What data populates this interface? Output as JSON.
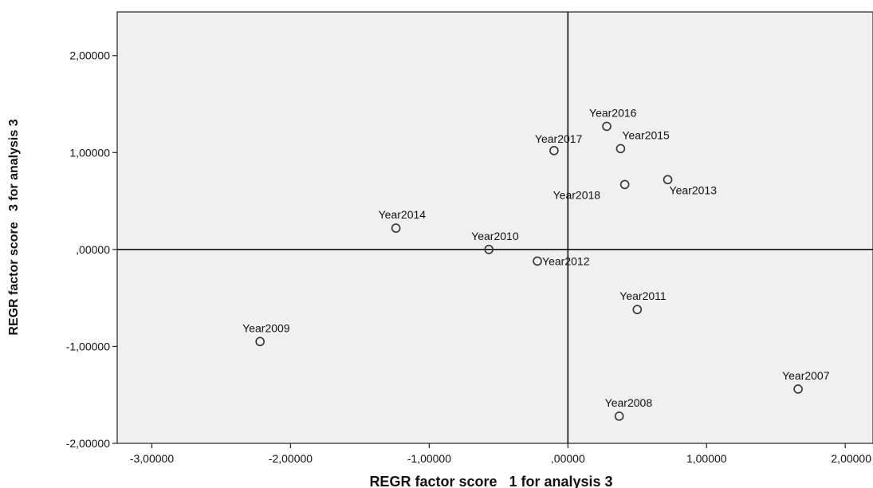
{
  "chart_data": {
    "type": "scatter",
    "xlabel": "REGR factor score   1 for analysis 3",
    "ylabel": "REGR factor score   3 for analysis 3",
    "xlim": [
      -3.25,
      2.2
    ],
    "ylim": [
      -2.0,
      2.45
    ],
    "x_ticks": [
      -3,
      -2,
      -1,
      0,
      1,
      2
    ],
    "y_ticks": [
      -2,
      -1,
      0,
      1,
      2
    ],
    "x_tick_labels": [
      "-3,00000",
      "-2,00000",
      "-1,00000",
      ",00000",
      "1,00000",
      "2,00000"
    ],
    "y_tick_labels": [
      "-2,00000",
      "-1,00000",
      ",00000",
      "1,00000",
      "2,00000"
    ],
    "reference_lines": {
      "x": 0,
      "y": 0
    },
    "grid": false,
    "colors": {
      "plot_background": "#f0f0f0",
      "marker_stroke": "#333333",
      "reference_line": "#111111"
    },
    "points": [
      {
        "label": "Year2007",
        "x": 1.66,
        "y": -1.44
      },
      {
        "label": "Year2008",
        "x": 0.37,
        "y": -1.72
      },
      {
        "label": "Year2009",
        "x": -2.22,
        "y": -0.95
      },
      {
        "label": "Year2010",
        "x": -0.57,
        "y": 0.0
      },
      {
        "label": "Year2011",
        "x": 0.5,
        "y": -0.62
      },
      {
        "label": "Year2012",
        "x": -0.22,
        "y": -0.12
      },
      {
        "label": "Year2013",
        "x": 0.72,
        "y": 0.72
      },
      {
        "label": "Year2014",
        "x": -1.24,
        "y": 0.22
      },
      {
        "label": "Year2015",
        "x": 0.38,
        "y": 1.04
      },
      {
        "label": "Year2016",
        "x": 0.28,
        "y": 1.27
      },
      {
        "label": "Year2017",
        "x": -0.1,
        "y": 1.02
      },
      {
        "label": "Year2018",
        "x": 0.41,
        "y": 0.67
      }
    ]
  }
}
